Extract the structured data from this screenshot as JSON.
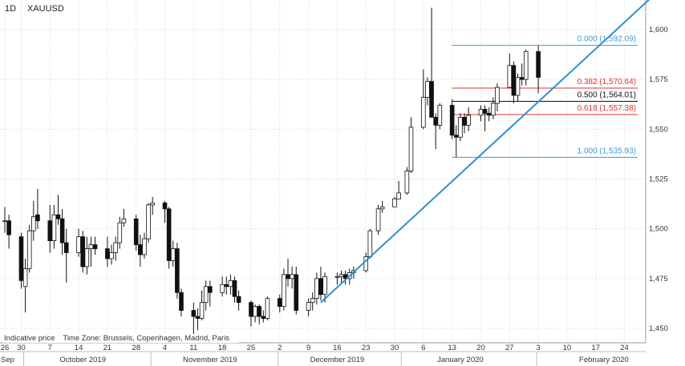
{
  "header": {
    "interval": "1D",
    "symbol": "XAUUSD"
  },
  "footer": {
    "indicative": "Indicative price",
    "timezone": "Time Zone: Brussels, Copenhagen, Madrid, Paris"
  },
  "colors": {
    "up_fill": "#ffffff",
    "down_fill": "#111111",
    "candle_outline": "#111111",
    "trendline": "#2b8fd6",
    "fib_blue": "#3f9ad8",
    "fib_red": "#e03030",
    "fib_black": "#111111",
    "grid": "#d8d8d8"
  },
  "chart_data": {
    "type": "candlestick",
    "ylim": [
      1445,
      1617
    ],
    "y_ticks": [
      1450,
      1475,
      1500,
      1525,
      1550,
      1575,
      1600
    ],
    "y_tick_labels": [
      "1,450",
      "1,475",
      "1,500",
      "1,525",
      "1,550",
      "1,575",
      "1,600"
    ],
    "day_labels": [
      {
        "label": "26",
        "date": "2019-09-26"
      },
      {
        "label": "30",
        "date": "2019-09-30"
      },
      {
        "label": "7",
        "date": "2019-10-07"
      },
      {
        "label": "14",
        "date": "2019-10-14"
      },
      {
        "label": "21",
        "date": "2019-10-21"
      },
      {
        "label": "28",
        "date": "2019-10-28"
      },
      {
        "label": "4",
        "date": "2019-11-04"
      },
      {
        "label": "11",
        "date": "2019-11-11"
      },
      {
        "label": "18",
        "date": "2019-11-18"
      },
      {
        "label": "25",
        "date": "2019-11-25"
      },
      {
        "label": "2",
        "date": "2019-12-02"
      },
      {
        "label": "9",
        "date": "2019-12-09"
      },
      {
        "label": "16",
        "date": "2019-12-16"
      },
      {
        "label": "23",
        "date": "2019-12-23"
      },
      {
        "label": "30",
        "date": "2019-12-30"
      },
      {
        "label": "6",
        "date": "2020-01-06"
      },
      {
        "label": "13",
        "date": "2020-01-13"
      },
      {
        "label": "20",
        "date": "2020-01-20"
      },
      {
        "label": "27",
        "date": "2020-01-27"
      },
      {
        "label": "3",
        "date": "2020-02-03"
      },
      {
        "label": "10",
        "date": "2020-02-10"
      },
      {
        "label": "17",
        "date": "2020-02-17"
      },
      {
        "label": "24",
        "date": "2020-02-24"
      }
    ],
    "month_labels": [
      {
        "label": "Sep",
        "date": "2019-09-26"
      },
      {
        "label": "October 2019",
        "date": "2019-10-15"
      },
      {
        "label": "November 2019",
        "date": "2019-11-15"
      },
      {
        "label": "December 2019",
        "date": "2019-12-16"
      },
      {
        "label": "January 2020",
        "date": "2020-01-15"
      },
      {
        "label": "February 2020",
        "date": "2020-02-19"
      }
    ],
    "month_separators": [
      "2019-10-01",
      "2019-11-01",
      "2019-12-02",
      "2020-01-01",
      "2020-02-03"
    ],
    "candles": [
      {
        "d": "2019-09-26",
        "o": 1504,
        "h": 1511,
        "l": 1498,
        "c": 1504
      },
      {
        "d": "2019-09-27",
        "o": 1504,
        "h": 1507,
        "l": 1490,
        "c": 1497
      },
      {
        "d": "2019-09-30",
        "o": 1496,
        "h": 1498,
        "l": 1470,
        "c": 1474
      },
      {
        "d": "2019-10-01",
        "o": 1471,
        "h": 1485,
        "l": 1458,
        "c": 1480
      },
      {
        "d": "2019-10-02",
        "o": 1480,
        "h": 1502,
        "l": 1478,
        "c": 1499
      },
      {
        "d": "2019-10-03",
        "o": 1499,
        "h": 1514,
        "l": 1494,
        "c": 1506
      },
      {
        "d": "2019-10-04",
        "o": 1507,
        "h": 1520,
        "l": 1500,
        "c": 1504
      },
      {
        "d": "2019-10-07",
        "o": 1504,
        "h": 1512,
        "l": 1488,
        "c": 1494
      },
      {
        "d": "2019-10-08",
        "o": 1494,
        "h": 1512,
        "l": 1490,
        "c": 1507
      },
      {
        "d": "2019-10-09",
        "o": 1507,
        "h": 1517,
        "l": 1502,
        "c": 1505
      },
      {
        "d": "2019-10-10",
        "o": 1505,
        "h": 1510,
        "l": 1487,
        "c": 1493
      },
      {
        "d": "2019-10-11",
        "o": 1493,
        "h": 1500,
        "l": 1473,
        "c": 1488
      },
      {
        "d": "2019-10-14",
        "o": 1488,
        "h": 1500,
        "l": 1486,
        "c": 1496
      },
      {
        "d": "2019-10-15",
        "o": 1496,
        "h": 1499,
        "l": 1478,
        "c": 1481
      },
      {
        "d": "2019-10-16",
        "o": 1481,
        "h": 1496,
        "l": 1477,
        "c": 1490
      },
      {
        "d": "2019-10-17",
        "o": 1490,
        "h": 1496,
        "l": 1481,
        "c": 1492
      },
      {
        "d": "2019-10-18",
        "o": 1492,
        "h": 1496,
        "l": 1487,
        "c": 1490
      },
      {
        "d": "2019-10-21",
        "o": 1490,
        "h": 1496,
        "l": 1481,
        "c": 1485
      },
      {
        "d": "2019-10-22",
        "o": 1485,
        "h": 1492,
        "l": 1482,
        "c": 1488
      },
      {
        "d": "2019-10-23",
        "o": 1488,
        "h": 1496,
        "l": 1484,
        "c": 1493
      },
      {
        "d": "2019-10-24",
        "o": 1493,
        "h": 1506,
        "l": 1490,
        "c": 1503
      },
      {
        "d": "2019-10-25",
        "o": 1503,
        "h": 1510,
        "l": 1501,
        "c": 1505
      },
      {
        "d": "2019-10-28",
        "o": 1505,
        "h": 1507,
        "l": 1489,
        "c": 1492
      },
      {
        "d": "2019-10-29",
        "o": 1492,
        "h": 1497,
        "l": 1481,
        "c": 1487
      },
      {
        "d": "2019-10-30",
        "o": 1487,
        "h": 1498,
        "l": 1485,
        "c": 1495
      },
      {
        "d": "2019-10-31",
        "o": 1495,
        "h": 1513,
        "l": 1493,
        "c": 1512
      },
      {
        "d": "2019-11-01",
        "o": 1512,
        "h": 1516,
        "l": 1507,
        "c": 1513
      },
      {
        "d": "2019-11-04",
        "o": 1513,
        "h": 1514,
        "l": 1503,
        "c": 1510
      },
      {
        "d": "2019-11-05",
        "o": 1510,
        "h": 1511,
        "l": 1480,
        "c": 1484
      },
      {
        "d": "2019-11-06",
        "o": 1484,
        "h": 1494,
        "l": 1481,
        "c": 1490
      },
      {
        "d": "2019-11-07",
        "o": 1490,
        "h": 1493,
        "l": 1465,
        "c": 1468
      },
      {
        "d": "2019-11-08",
        "o": 1468,
        "h": 1470,
        "l": 1456,
        "c": 1459
      },
      {
        "d": "2019-11-11",
        "o": 1459,
        "h": 1463,
        "l": 1446,
        "c": 1456
      },
      {
        "d": "2019-11-12",
        "o": 1456,
        "h": 1460,
        "l": 1449,
        "c": 1455
      },
      {
        "d": "2019-11-13",
        "o": 1455,
        "h": 1469,
        "l": 1454,
        "c": 1463
      },
      {
        "d": "2019-11-14",
        "o": 1463,
        "h": 1474,
        "l": 1459,
        "c": 1471
      },
      {
        "d": "2019-11-15",
        "o": 1471,
        "h": 1474,
        "l": 1461,
        "c": 1468
      },
      {
        "d": "2019-11-18",
        "o": 1468,
        "h": 1476,
        "l": 1466,
        "c": 1472
      },
      {
        "d": "2019-11-19",
        "o": 1472,
        "h": 1476,
        "l": 1467,
        "c": 1471
      },
      {
        "d": "2019-11-20",
        "o": 1471,
        "h": 1477,
        "l": 1467,
        "c": 1474
      },
      {
        "d": "2019-11-21",
        "o": 1474,
        "h": 1476,
        "l": 1463,
        "c": 1466
      },
      {
        "d": "2019-11-22",
        "o": 1466,
        "h": 1469,
        "l": 1459,
        "c": 1463
      },
      {
        "d": "2019-11-25",
        "o": 1463,
        "h": 1464,
        "l": 1451,
        "c": 1456
      },
      {
        "d": "2019-11-26",
        "o": 1456,
        "h": 1462,
        "l": 1453,
        "c": 1461
      },
      {
        "d": "2019-11-27",
        "o": 1461,
        "h": 1462,
        "l": 1452,
        "c": 1456
      },
      {
        "d": "2019-11-28",
        "o": 1456,
        "h": 1459,
        "l": 1453,
        "c": 1455
      },
      {
        "d": "2019-11-29",
        "o": 1455,
        "h": 1466,
        "l": 1454,
        "c": 1465
      },
      {
        "d": "2019-12-02",
        "o": 1465,
        "h": 1467,
        "l": 1458,
        "c": 1461
      },
      {
        "d": "2019-12-03",
        "o": 1461,
        "h": 1480,
        "l": 1459,
        "c": 1477
      },
      {
        "d": "2019-12-04",
        "o": 1477,
        "h": 1485,
        "l": 1471,
        "c": 1475
      },
      {
        "d": "2019-12-05",
        "o": 1475,
        "h": 1481,
        "l": 1470,
        "c": 1477
      },
      {
        "d": "2019-12-06",
        "o": 1477,
        "h": 1481,
        "l": 1457,
        "c": 1459
      },
      {
        "d": "2019-12-09",
        "o": 1459,
        "h": 1465,
        "l": 1456,
        "c": 1463
      },
      {
        "d": "2019-12-10",
        "o": 1463,
        "h": 1468,
        "l": 1459,
        "c": 1465
      },
      {
        "d": "2019-12-11",
        "o": 1465,
        "h": 1478,
        "l": 1462,
        "c": 1475
      },
      {
        "d": "2019-12-12",
        "o": 1475,
        "h": 1481,
        "l": 1464,
        "c": 1467
      },
      {
        "d": "2019-12-13",
        "o": 1467,
        "h": 1478,
        "l": 1463,
        "c": 1476
      },
      {
        "d": "2019-12-16",
        "o": 1476,
        "h": 1478,
        "l": 1472,
        "c": 1476
      },
      {
        "d": "2019-12-17",
        "o": 1476,
        "h": 1479,
        "l": 1473,
        "c": 1477
      },
      {
        "d": "2019-12-18",
        "o": 1477,
        "h": 1479,
        "l": 1472,
        "c": 1475
      },
      {
        "d": "2019-12-19",
        "o": 1475,
        "h": 1480,
        "l": 1472,
        "c": 1478
      },
      {
        "d": "2019-12-20",
        "o": 1478,
        "h": 1481,
        "l": 1475,
        "c": 1479
      },
      {
        "d": "2019-12-23",
        "o": 1479,
        "h": 1488,
        "l": 1478,
        "c": 1486
      },
      {
        "d": "2019-12-24",
        "o": 1486,
        "h": 1500,
        "l": 1485,
        "c": 1499
      },
      {
        "d": "2019-12-26",
        "o": 1499,
        "h": 1512,
        "l": 1497,
        "c": 1510
      },
      {
        "d": "2019-12-27",
        "o": 1510,
        "h": 1514,
        "l": 1508,
        "c": 1511
      },
      {
        "d": "2019-12-30",
        "o": 1511,
        "h": 1516,
        "l": 1511,
        "c": 1515
      },
      {
        "d": "2019-12-31",
        "o": 1515,
        "h": 1524,
        "l": 1515,
        "c": 1518
      },
      {
        "d": "2020-01-02",
        "o": 1518,
        "h": 1531,
        "l": 1517,
        "c": 1529
      },
      {
        "d": "2020-01-03",
        "o": 1529,
        "h": 1556,
        "l": 1528,
        "c": 1551
      },
      {
        "d": "2020-01-06",
        "o": 1551,
        "h": 1580,
        "l": 1550,
        "c": 1566
      },
      {
        "d": "2020-01-07",
        "o": 1566,
        "h": 1576,
        "l": 1562,
        "c": 1574
      },
      {
        "d": "2020-01-08",
        "o": 1574,
        "h": 1611,
        "l": 1556,
        "c": 1556
      },
      {
        "d": "2020-01-09",
        "o": 1556,
        "h": 1558,
        "l": 1540,
        "c": 1552
      },
      {
        "d": "2020-01-10",
        "o": 1552,
        "h": 1563,
        "l": 1550,
        "c": 1562
      },
      {
        "d": "2020-01-13",
        "o": 1562,
        "h": 1565,
        "l": 1545,
        "c": 1547
      },
      {
        "d": "2020-01-14",
        "o": 1547,
        "h": 1552,
        "l": 1536,
        "c": 1546
      },
      {
        "d": "2020-01-15",
        "o": 1546,
        "h": 1558,
        "l": 1544,
        "c": 1556
      },
      {
        "d": "2020-01-16",
        "o": 1556,
        "h": 1558,
        "l": 1548,
        "c": 1552
      },
      {
        "d": "2020-01-17",
        "o": 1552,
        "h": 1561,
        "l": 1549,
        "c": 1557
      },
      {
        "d": "2020-01-20",
        "o": 1557,
        "h": 1562,
        "l": 1554,
        "c": 1560
      },
      {
        "d": "2020-01-21",
        "o": 1560,
        "h": 1562,
        "l": 1549,
        "c": 1558
      },
      {
        "d": "2020-01-22",
        "o": 1558,
        "h": 1561,
        "l": 1554,
        "c": 1557
      },
      {
        "d": "2020-01-23",
        "o": 1557,
        "h": 1566,
        "l": 1555,
        "c": 1563
      },
      {
        "d": "2020-01-24",
        "o": 1563,
        "h": 1573,
        "l": 1559,
        "c": 1571
      },
      {
        "d": "2020-01-27",
        "o": 1571,
        "h": 1588,
        "l": 1571,
        "c": 1582
      },
      {
        "d": "2020-01-28",
        "o": 1582,
        "h": 1584,
        "l": 1563,
        "c": 1567
      },
      {
        "d": "2020-01-29",
        "o": 1567,
        "h": 1578,
        "l": 1564,
        "c": 1576
      },
      {
        "d": "2020-01-30",
        "o": 1576,
        "h": 1583,
        "l": 1572,
        "c": 1575
      },
      {
        "d": "2020-01-31",
        "o": 1575,
        "h": 1590,
        "l": 1572,
        "c": 1589
      },
      {
        "d": "2020-02-03",
        "o": 1589,
        "h": 1592,
        "l": 1568,
        "c": 1576
      }
    ],
    "trendline": {
      "start": {
        "d": "2019-12-12",
        "p": 1463
      },
      "end": {
        "d": "2020-03-02",
        "p": 1617
      }
    },
    "fib_levels": [
      {
        "ratio": "0.000",
        "label": "0.000 (1,592.09)",
        "price": 1592.09,
        "color": "#3f9ad8"
      },
      {
        "ratio": "0.382",
        "label": "0.382 (1,570.64)",
        "price": 1570.64,
        "color": "#e03030"
      },
      {
        "ratio": "0.500",
        "label": "0.500 (1,564.01)",
        "price": 1564.01,
        "color": "#111111"
      },
      {
        "ratio": "0.618",
        "label": "0.618 (1,557.38)",
        "price": 1557.38,
        "color": "#e03030"
      },
      {
        "ratio": "1.000",
        "label": "1.000 (1,535.93)",
        "price": 1535.93,
        "color": "#3f9ad8"
      }
    ],
    "fib_span": {
      "start": "2020-01-13",
      "end": "2020-03-02"
    },
    "x_start": "2019-09-26",
    "x_end": "2020-02-28",
    "grid": true
  }
}
